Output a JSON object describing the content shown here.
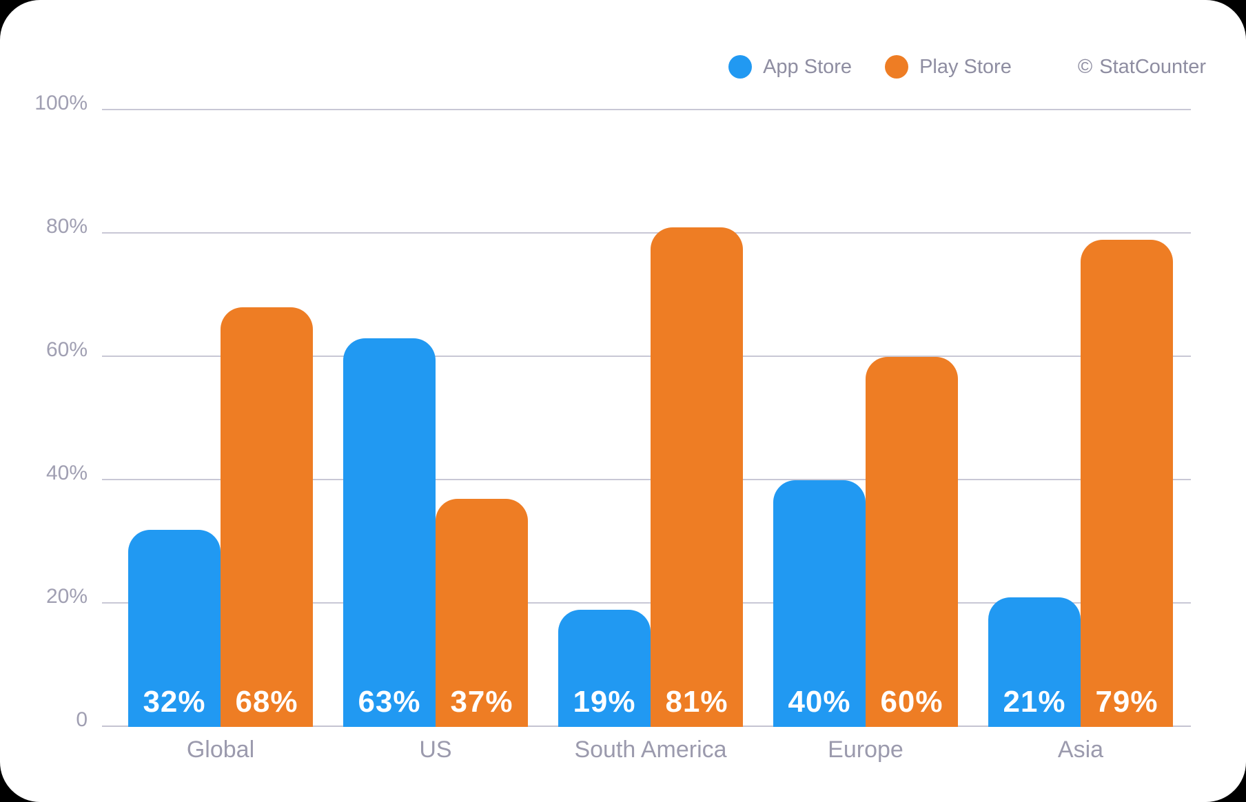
{
  "style": {
    "bg": "#000000",
    "card": "#ffffff",
    "grid": "#C8C7D5",
    "axis": "#C4C3D1",
    "tick-text": "#A09FB2",
    "category-text": "#9B9AAD",
    "legend-text": "#8E8DA1",
    "value-text": "#FFFFFF"
  },
  "legend": {
    "items": [
      {
        "label": "App Store",
        "color": "#2199F2",
        "icon": "circle"
      },
      {
        "label": "Play Store",
        "color": "#EE7D24",
        "icon": "circle"
      }
    ],
    "copyright_symbol": "©",
    "copyright_label": "StatCounter"
  },
  "chart_data": {
    "type": "bar",
    "title": "",
    "xlabel": "",
    "ylabel": "",
    "categories": [
      "Global",
      "US",
      "South America",
      "Europe",
      "Asia"
    ],
    "series": [
      {
        "name": "App Store",
        "color": "#2199F2",
        "values": [
          32,
          63,
          19,
          40,
          21
        ],
        "value_labels": [
          "32%",
          "63%",
          "19%",
          "40%",
          "21%"
        ]
      },
      {
        "name": "Play Store",
        "color": "#EE7D24",
        "values": [
          68,
          37,
          81,
          60,
          79
        ],
        "value_labels": [
          "68%",
          "37%",
          "81%",
          "60%",
          "79%"
        ]
      }
    ],
    "y_axis": {
      "ticks": [
        "100%",
        "80%",
        "60%",
        "40%",
        "20%",
        "0"
      ],
      "tick_values": [
        100,
        80,
        60,
        40,
        20,
        0
      ],
      "min": 0,
      "max": 100,
      "grid": true
    },
    "legend_position": "top-right",
    "bar_corner_radius": 32,
    "bars_touch_within_group": true
  }
}
